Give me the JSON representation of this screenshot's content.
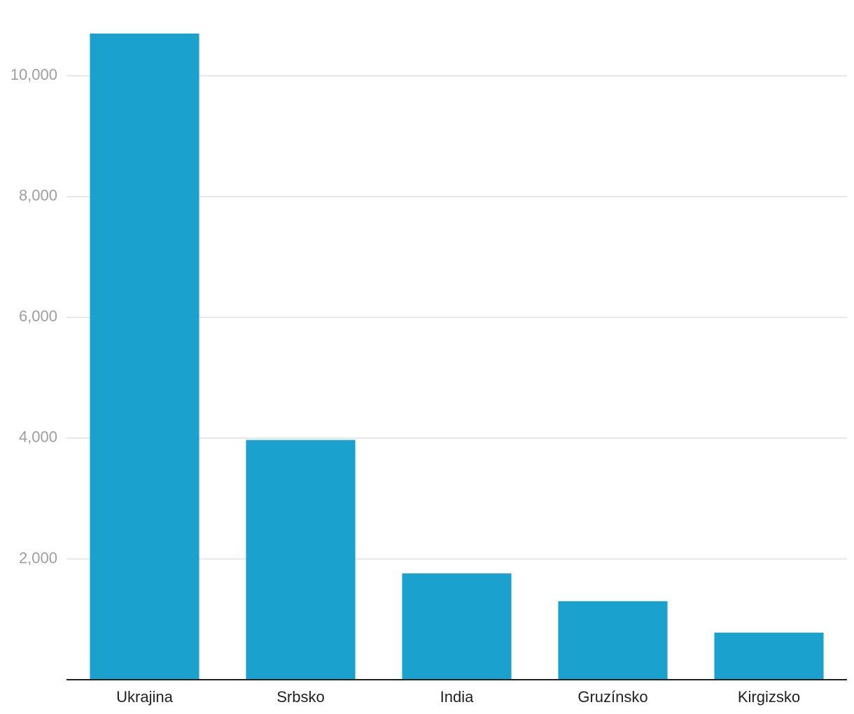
{
  "chart_data": {
    "type": "bar",
    "categories": [
      "Ukrajina",
      "Srbsko",
      "India",
      "Gruzínsko",
      "Kirgizsko"
    ],
    "values": [
      10700,
      3970,
      1760,
      1300,
      780
    ],
    "color": "#1aa1cd",
    "ylim": [
      0,
      11000
    ],
    "yticks": [
      {
        "value": 2000,
        "label": "2,000"
      },
      {
        "value": 4000,
        "label": "4,000"
      },
      {
        "value": 6000,
        "label": "6,000"
      },
      {
        "value": 8000,
        "label": "8,000"
      },
      {
        "value": 10000,
        "label": "10,000"
      }
    ],
    "grid": true
  }
}
